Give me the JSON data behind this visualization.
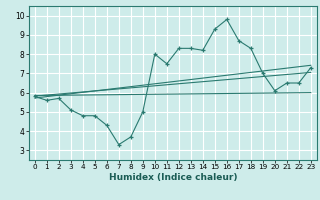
{
  "xlabel": "Humidex (Indice chaleur)",
  "ylabel": "",
  "xlim": [
    -0.5,
    23.5
  ],
  "ylim": [
    2.5,
    10.5
  ],
  "xticks": [
    0,
    1,
    2,
    3,
    4,
    5,
    6,
    7,
    8,
    9,
    10,
    11,
    12,
    13,
    14,
    15,
    16,
    17,
    18,
    19,
    20,
    21,
    22,
    23
  ],
  "yticks": [
    3,
    4,
    5,
    6,
    7,
    8,
    9,
    10
  ],
  "bg_color": "#ceecea",
  "grid_color": "#ffffff",
  "line_color": "#2a7a70",
  "main_series_x": [
    0,
    1,
    2,
    3,
    4,
    5,
    6,
    7,
    8,
    9,
    10,
    11,
    12,
    13,
    14,
    15,
    16,
    17,
    18,
    19,
    20,
    21,
    22,
    23
  ],
  "main_series_y": [
    5.8,
    5.6,
    5.7,
    5.1,
    4.8,
    4.8,
    4.3,
    3.3,
    3.7,
    5.0,
    8.0,
    7.5,
    8.3,
    8.3,
    8.2,
    9.3,
    9.8,
    8.7,
    8.3,
    7.0,
    6.1,
    6.5,
    6.5,
    7.3
  ],
  "trend1_x": [
    0,
    23
  ],
  "trend1_y": [
    5.82,
    7.05
  ],
  "trend2_x": [
    0,
    23
  ],
  "trend2_y": [
    5.72,
    7.42
  ],
  "trend3_x": [
    0,
    23
  ],
  "trend3_y": [
    5.85,
    6.0
  ]
}
